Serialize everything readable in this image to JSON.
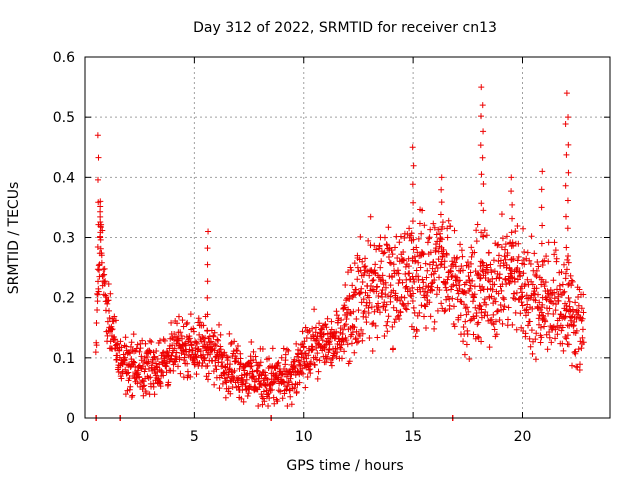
{
  "chart_data": {
    "type": "scatter",
    "title": "Day 312 of 2022, SRMTID for receiver cn13",
    "xlabel": "GPS time / hours",
    "ylabel": "SRMTID / TECUs",
    "xlim": [
      0,
      24
    ],
    "ylim": [
      0,
      0.6
    ],
    "xticks": [
      0,
      5,
      10,
      15,
      20
    ],
    "yticks": [
      0,
      0.1,
      0.2,
      0.3,
      0.4,
      0.5,
      0.6
    ],
    "xtick_labels": [
      "0",
      "5",
      "10",
      "15",
      "20"
    ],
    "ytick_labels": [
      "0",
      "0.1",
      "0.2",
      "0.3",
      "0.4",
      "0.5",
      "0.6"
    ],
    "grid": true,
    "marker": "+",
    "color": "#ee0000",
    "x_range": [
      0.5,
      22.8
    ],
    "baseline_zero_x": [
      0.5,
      1.6,
      8.5,
      16.8
    ],
    "trend": [
      {
        "x": 0.5,
        "y": 0.12
      },
      {
        "x": 0.7,
        "y": 0.3
      },
      {
        "x": 1.0,
        "y": 0.18
      },
      {
        "x": 1.5,
        "y": 0.1
      },
      {
        "x": 2.5,
        "y": 0.08
      },
      {
        "x": 3.5,
        "y": 0.09
      },
      {
        "x": 4.5,
        "y": 0.12
      },
      {
        "x": 5.5,
        "y": 0.12
      },
      {
        "x": 6.5,
        "y": 0.09
      },
      {
        "x": 7.5,
        "y": 0.07
      },
      {
        "x": 8.5,
        "y": 0.06
      },
      {
        "x": 9.5,
        "y": 0.07
      },
      {
        "x": 10.5,
        "y": 0.12
      },
      {
        "x": 11.5,
        "y": 0.13
      },
      {
        "x": 12.3,
        "y": 0.2
      },
      {
        "x": 13.5,
        "y": 0.22
      },
      {
        "x": 14.5,
        "y": 0.23
      },
      {
        "x": 15.5,
        "y": 0.24
      },
      {
        "x": 16.5,
        "y": 0.26
      },
      {
        "x": 17.5,
        "y": 0.2
      },
      {
        "x": 18.5,
        "y": 0.22
      },
      {
        "x": 19.5,
        "y": 0.24
      },
      {
        "x": 20.5,
        "y": 0.2
      },
      {
        "x": 21.5,
        "y": 0.2
      },
      {
        "x": 22.8,
        "y": 0.15
      }
    ],
    "spikes": [
      {
        "x": 0.6,
        "y": 0.47
      },
      {
        "x": 0.7,
        "y": 0.36
      },
      {
        "x": 5.6,
        "y": 0.31
      },
      {
        "x": 15.0,
        "y": 0.45
      },
      {
        "x": 16.3,
        "y": 0.4
      },
      {
        "x": 18.1,
        "y": 0.55
      },
      {
        "x": 18.2,
        "y": 0.52
      },
      {
        "x": 19.5,
        "y": 0.4
      },
      {
        "x": 20.9,
        "y": 0.41
      },
      {
        "x": 22.0,
        "y": 0.54
      },
      {
        "x": 22.1,
        "y": 0.5
      }
    ]
  }
}
